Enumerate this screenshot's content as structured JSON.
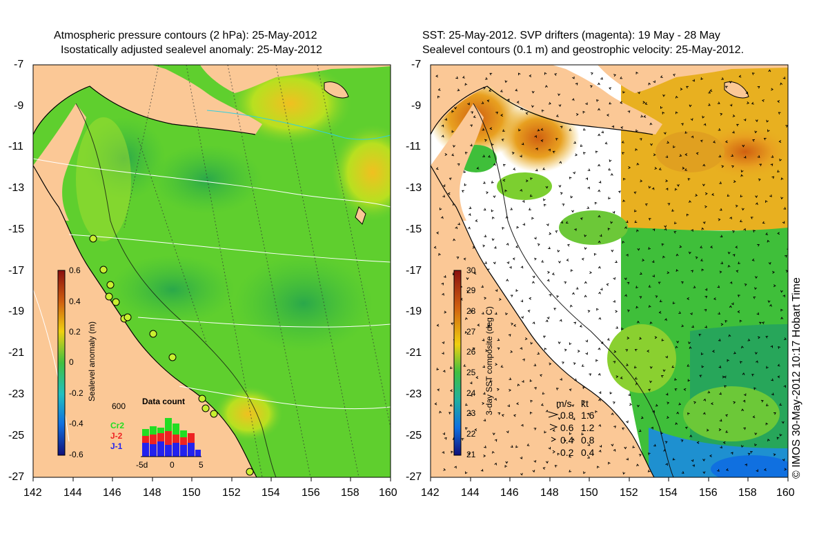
{
  "left_panel": {
    "title_line1": "Atmospheric pressure contours (2 hPa): 25-May-2012",
    "title_line2": "Isostatically adjusted sealevel anomaly: 25-May-2012",
    "colorbar_label": "Sealevel anomaly (m)",
    "colorbar_ticks": [
      "0.6",
      "0.4",
      "0.2",
      "0",
      "-0.2",
      "-0.4",
      "-0.6"
    ],
    "hist_title": "Data count",
    "hist_max": "600",
    "hist_xticks": [
      "-5d",
      "0",
      "5"
    ],
    "missions": [
      {
        "name": "Cr2",
        "color": "#22dd22"
      },
      {
        "name": "J-2",
        "color": "#ee2222"
      },
      {
        "name": "J-1",
        "color": "#2222ee"
      }
    ]
  },
  "right_panel": {
    "title_line1": "SST: 25-May-2012. SVP drifters (magenta): 19 May - 28 May",
    "title_line2": "Sealevel contours (0.1 m) and geostrophic velocity: 25-May-2012.",
    "colorbar_label": "3-day SST composite (deg C)",
    "colorbar_ticks": [
      "30",
      "29",
      "28",
      "27",
      "26",
      "25",
      "24",
      "23",
      "22",
      "21"
    ],
    "velocity_header_ms": "m/s",
    "velocity_header_kt": "kt",
    "velocity_scale": [
      {
        "ms": "0.8",
        "kt": "1.6"
      },
      {
        "ms": "0.6",
        "kt": "1.2"
      },
      {
        "ms": "0.4",
        "kt": "0.8"
      },
      {
        "ms": "0.2",
        "kt": "0.4"
      }
    ]
  },
  "y_ticks": [
    "-7",
    "-9",
    "-11",
    "-13",
    "-15",
    "-17",
    "-19",
    "-21",
    "-23",
    "-25",
    "-27"
  ],
  "x_ticks": [
    "142",
    "144",
    "146",
    "148",
    "150",
    "152",
    "154",
    "156",
    "158",
    "160"
  ],
  "copyright": "© IMOS 30-May-2012 10:17 Hobart Time",
  "colors": {
    "land": "#fbc896",
    "ocean_green": "#5fcf2e",
    "warm": "#e0a020"
  }
}
